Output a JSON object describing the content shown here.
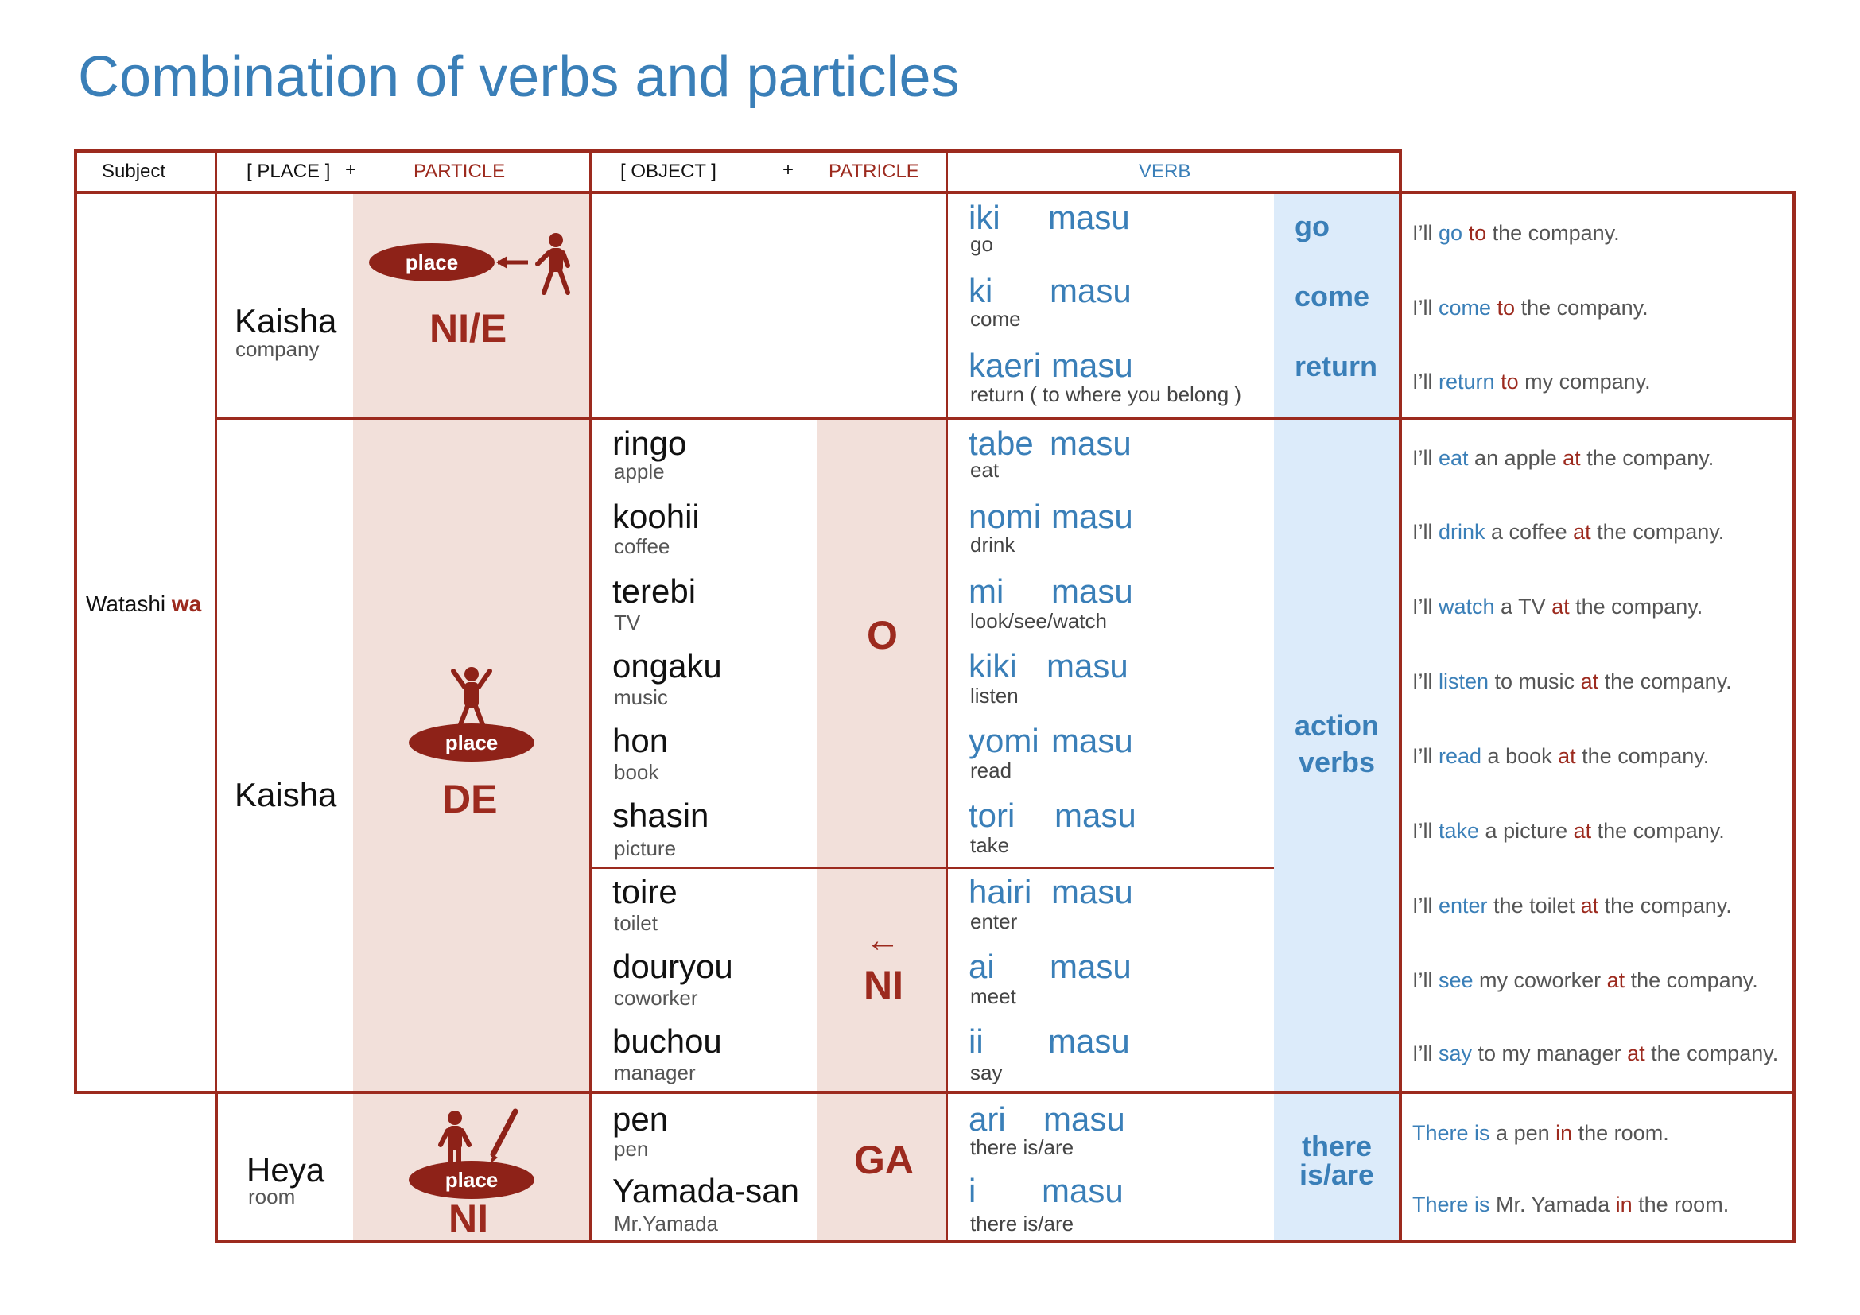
{
  "title": "Combination of verbs and particles",
  "header": {
    "subject": "Subject",
    "place": "[ PLACE ]",
    "plus1": "+",
    "particle1": "PARTICLE",
    "object": "[ OBJECT ]",
    "plus2": "+",
    "particle2": "PATRICLE",
    "verb": "VERB"
  },
  "subject": {
    "word": "Watashi",
    "particle": "wa"
  },
  "oval_label": "place",
  "colors": {
    "red": "#9c2a1e",
    "blue": "#3a7fb8",
    "pink_band": "#f2e0da",
    "blue_band": "#dcebfa"
  },
  "group1": {
    "place": "Kaisha",
    "place_sub": "company",
    "particle": "NI/E",
    "verbs": [
      {
        "stem": "iki",
        "masu": "masu",
        "sub": "go",
        "category": "go",
        "sentence": {
          "pre": "I’ll ",
          "verb": "go",
          "mid": " ",
          "particle": "to",
          "post": " the company."
        }
      },
      {
        "stem": "ki",
        "masu": "masu",
        "sub": "come",
        "category": "come",
        "sentence": {
          "pre": "I’ll ",
          "verb": "come",
          "mid": " ",
          "particle": "to",
          "post": " the company."
        }
      },
      {
        "stem": "kaeri",
        "masu": "masu",
        "sub": "return ( to where you belong )",
        "category": "return",
        "sentence": {
          "pre": "I’ll ",
          "verb": "return",
          "mid": " ",
          "particle": "to",
          "post": " my company."
        }
      }
    ]
  },
  "group2": {
    "place": "Kaisha",
    "particle": "DE",
    "category": [
      "action",
      "verbs"
    ],
    "o_particle": "O",
    "ni_arrow": "←",
    "ni_particle": "NI",
    "rows": [
      {
        "obj": "ringo",
        "obj_sub": "apple",
        "stem": "tabe",
        "masu": "masu",
        "sub": "eat",
        "sentence": {
          "pre": "I’ll ",
          "verb": "eat",
          "mid": " an apple ",
          "particle": "at",
          "post": " the company."
        }
      },
      {
        "obj": "koohii",
        "obj_sub": "coffee",
        "stem": "nomi",
        "masu": "masu",
        "sub": "drink",
        "sentence": {
          "pre": "I’ll ",
          "verb": "drink",
          "mid": " a coffee ",
          "particle": "at",
          "post": " the company."
        }
      },
      {
        "obj": "terebi",
        "obj_sub": "TV",
        "stem": "mi",
        "masu": "masu",
        "sub": "look/see/watch",
        "sentence": {
          "pre": "I’ll ",
          "verb": "watch",
          "mid": " a TV ",
          "particle": "at",
          "post": " the company."
        }
      },
      {
        "obj": "ongaku",
        "obj_sub": "music",
        "stem": "kiki",
        "masu": "masu",
        "sub": "listen",
        "sentence": {
          "pre": "I’ll ",
          "verb": "listen",
          "mid": " to music ",
          "particle": "at",
          "post": " the company."
        }
      },
      {
        "obj": "hon",
        "obj_sub": "book",
        "stem": "yomi",
        "masu": "masu",
        "sub": "read",
        "sentence": {
          "pre": "I’ll ",
          "verb": "read",
          "mid": " a book ",
          "particle": "at",
          "post": " the company."
        }
      },
      {
        "obj": "shasin",
        "obj_sub": "picture",
        "stem": "tori",
        "masu": "masu",
        "sub": "take",
        "sentence": {
          "pre": "I’ll ",
          "verb": "take",
          "mid": " a picture ",
          "particle": "at",
          "post": " the company."
        }
      },
      {
        "obj": "toire",
        "obj_sub": "toilet",
        "stem": "hairi",
        "masu": "masu",
        "sub": "enter",
        "sentence": {
          "pre": "I’ll ",
          "verb": "enter",
          "mid": " the toilet ",
          "particle": "at",
          "post": " the company."
        }
      },
      {
        "obj": "douryou",
        "obj_sub": "coworker",
        "stem": "ai",
        "masu": "masu",
        "sub": "meet",
        "sentence": {
          "pre": "I’ll ",
          "verb": "see",
          "mid": " my coworker ",
          "particle": "at",
          "post": " the company."
        }
      },
      {
        "obj": "buchou",
        "obj_sub": "manager",
        "stem": "ii",
        "masu": "masu",
        "sub": "say",
        "sentence": {
          "pre": "I’ll ",
          "verb": "say",
          "mid": " to my manager ",
          "particle": "at",
          "post": " the company."
        }
      }
    ]
  },
  "group3": {
    "place": "Heya",
    "place_sub": "room",
    "particle": "NI",
    "obj_particle": "GA",
    "category": [
      "there",
      "is/are"
    ],
    "rows": [
      {
        "obj": "pen",
        "obj_sub": "pen",
        "stem": "ari",
        "masu": "masu",
        "sub": "there is/are",
        "sentence": {
          "verb": "There is",
          "mid": " a pen ",
          "particle": "in",
          "post": " the room."
        }
      },
      {
        "obj": "Yamada-san",
        "obj_sub": "Mr.Yamada",
        "stem": "i",
        "masu": "masu",
        "sub": "there is/are",
        "sentence": {
          "verb": "There is",
          "mid": " Mr. Yamada ",
          "particle": "in",
          "post": " the room."
        }
      }
    ]
  }
}
